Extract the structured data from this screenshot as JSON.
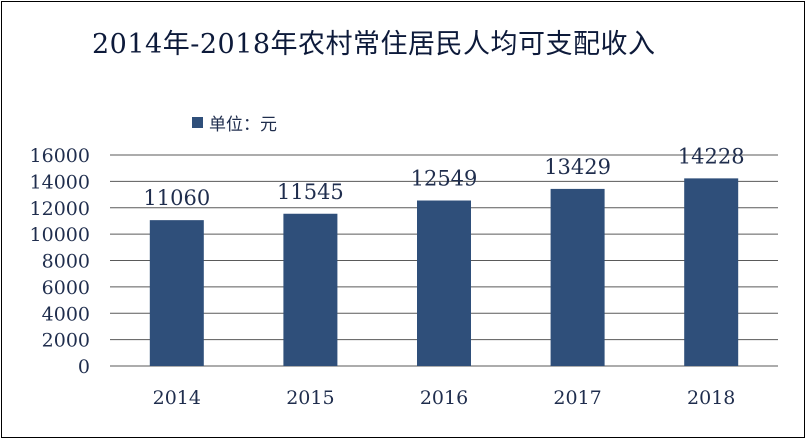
{
  "chart_data": {
    "type": "bar",
    "title": "2014年-2018年农村常住居民人均可支配收入",
    "categories": [
      "2014",
      "2015",
      "2016",
      "2017",
      "2018"
    ],
    "series": [
      {
        "name": "单位：元",
        "values": [
          11060,
          11545,
          12549,
          13429,
          14228
        ]
      }
    ],
    "data_labels": [
      "11060",
      "11545",
      "12549",
      "13429",
      "14228"
    ],
    "y_ticks": [
      "0",
      "2000",
      "4000",
      "6000",
      "8000",
      "10000",
      "12000",
      "14000",
      "16000"
    ],
    "ylim": [
      0,
      16000
    ],
    "grid": true,
    "legend_position": "top-left",
    "colors": {
      "bar": "#2f4f7a",
      "grid": "#5a5a5a",
      "text": "#1f2d4d"
    }
  }
}
